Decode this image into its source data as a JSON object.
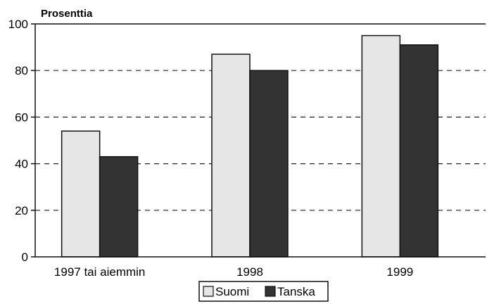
{
  "chart_data": {
    "type": "bar",
    "title": "",
    "xlabel": "",
    "ylabel": "Prosenttia",
    "ylim": [
      0,
      100
    ],
    "yticks": [
      0,
      20,
      40,
      60,
      80,
      100
    ],
    "grid": "dashed horizontal",
    "legend_position": "bottom-center",
    "categories": [
      "1997 tai aiemmin",
      "1998",
      "1999"
    ],
    "series": [
      {
        "name": "Suomi",
        "values": [
          54,
          87,
          95
        ],
        "color": "#e6e6e6"
      },
      {
        "name": "Tanska",
        "values": [
          43,
          80,
          91
        ],
        "color": "#333333"
      }
    ]
  }
}
